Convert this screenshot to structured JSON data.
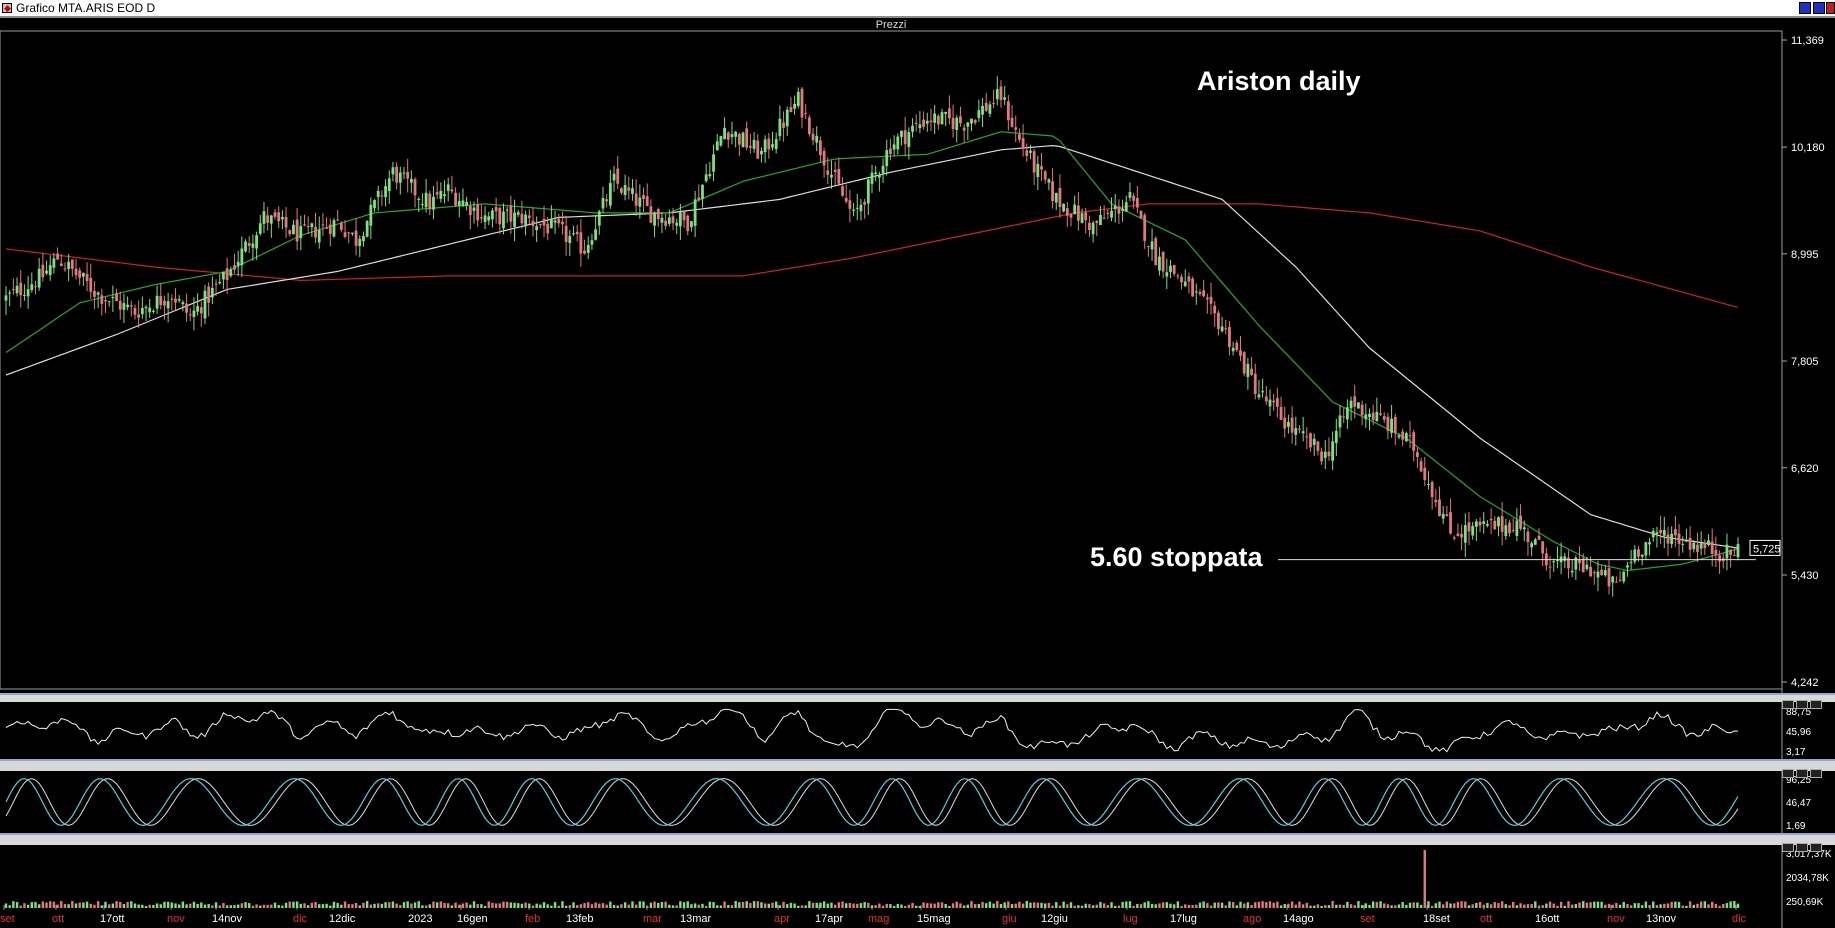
{
  "window": {
    "title": "Grafico MTA.ARIS EOD D",
    "panel_label": "Prezzi",
    "colors": {
      "background": "#000000",
      "bull": "#7ee07e",
      "bear": "#e07a7e",
      "ma_short": "#22aa22",
      "ma_mid": "#dddddd",
      "ma_long": "#cc2222",
      "osc_cyan": "#4fd0e0"
    }
  },
  "chart_data": {
    "type": "candlestick",
    "title": "Ariston daily",
    "annotation": {
      "text": "5.60 stoppata",
      "level": 5.6
    },
    "last_price": "5,725",
    "y_ticks": [
      "11,369",
      "10,180",
      "8,995",
      "7,805",
      "6,620",
      "5,430",
      "4,242"
    ],
    "y_tick_values": [
      11.369,
      10.18,
      8.995,
      7.805,
      6.62,
      5.43,
      4.242
    ],
    "ylim": [
      4.242,
      11.369
    ],
    "x_ticks": [
      {
        "label": "set",
        "red": true
      },
      {
        "label": "ott",
        "red": true
      },
      {
        "label": "17ott",
        "red": false
      },
      {
        "label": "nov",
        "red": true
      },
      {
        "label": "14nov",
        "red": false
      },
      {
        "label": "dic",
        "red": true
      },
      {
        "label": "12dic",
        "red": false
      },
      {
        "label": "2023",
        "red": false
      },
      {
        "label": "16gen",
        "red": false
      },
      {
        "label": "feb",
        "red": true
      },
      {
        "label": "13feb",
        "red": false
      },
      {
        "label": "mar",
        "red": true
      },
      {
        "label": "13mar",
        "red": false
      },
      {
        "label": "apr",
        "red": true
      },
      {
        "label": "17apr",
        "red": false
      },
      {
        "label": "mag",
        "red": true
      },
      {
        "label": "15mag",
        "red": false
      },
      {
        "label": "giu",
        "red": true
      },
      {
        "label": "12giu",
        "red": false
      },
      {
        "label": "lug",
        "red": true
      },
      {
        "label": "17lug",
        "red": false
      },
      {
        "label": "ago",
        "red": true
      },
      {
        "label": "14ago",
        "red": false
      },
      {
        "label": "set",
        "red": true
      },
      {
        "label": "18set",
        "red": false
      },
      {
        "label": "ott",
        "red": true
      },
      {
        "label": "16ott",
        "red": false
      },
      {
        "label": "nov",
        "red": true
      },
      {
        "label": "13nov",
        "red": false
      },
      {
        "label": "dic",
        "red": true
      }
    ],
    "close_anchors": [
      [
        0,
        8.5
      ],
      [
        10,
        8.75
      ],
      [
        14,
        8.95
      ],
      [
        25,
        8.55
      ],
      [
        35,
        8.35
      ],
      [
        45,
        8.55
      ],
      [
        50,
        8.3
      ],
      [
        60,
        8.75
      ],
      [
        70,
        9.4
      ],
      [
        80,
        9.2
      ],
      [
        90,
        9.35
      ],
      [
        95,
        9.15
      ],
      [
        105,
        9.9
      ],
      [
        115,
        9.55
      ],
      [
        120,
        9.7
      ],
      [
        130,
        9.4
      ],
      [
        140,
        9.4
      ],
      [
        150,
        9.25
      ],
      [
        157,
        9.05
      ],
      [
        165,
        9.8
      ],
      [
        175,
        9.45
      ],
      [
        185,
        9.35
      ],
      [
        195,
        10.4
      ],
      [
        205,
        10.1
      ],
      [
        215,
        10.7
      ],
      [
        225,
        9.8
      ],
      [
        230,
        9.4
      ],
      [
        240,
        10.2
      ],
      [
        250,
        10.5
      ],
      [
        260,
        10.45
      ],
      [
        270,
        10.75
      ],
      [
        275,
        10.25
      ],
      [
        280,
        9.9
      ],
      [
        285,
        9.6
      ],
      [
        295,
        9.3
      ],
      [
        305,
        9.6
      ],
      [
        312,
        8.97
      ],
      [
        318,
        8.75
      ],
      [
        330,
        8.2
      ],
      [
        340,
        7.45
      ],
      [
        350,
        7.0
      ],
      [
        358,
        6.75
      ],
      [
        365,
        7.35
      ],
      [
        375,
        7.1
      ],
      [
        382,
        6.85
      ],
      [
        392,
        5.9
      ],
      [
        400,
        5.95
      ],
      [
        410,
        6.0
      ],
      [
        420,
        5.55
      ],
      [
        430,
        5.5
      ],
      [
        437,
        5.3
      ],
      [
        442,
        5.7
      ],
      [
        450,
        5.9
      ],
      [
        460,
        5.75
      ],
      [
        468,
        5.65
      ],
      [
        470,
        5.725
      ]
    ],
    "ma20_anchors": [
      [
        0,
        7.9
      ],
      [
        20,
        8.45
      ],
      [
        40,
        8.65
      ],
      [
        60,
        8.8
      ],
      [
        80,
        9.2
      ],
      [
        100,
        9.45
      ],
      [
        130,
        9.55
      ],
      [
        160,
        9.45
      ],
      [
        180,
        9.45
      ],
      [
        200,
        9.8
      ],
      [
        225,
        10.05
      ],
      [
        250,
        10.1
      ],
      [
        270,
        10.35
      ],
      [
        285,
        10.3
      ],
      [
        300,
        9.55
      ],
      [
        320,
        9.15
      ],
      [
        340,
        8.2
      ],
      [
        360,
        7.35
      ],
      [
        380,
        6.95
      ],
      [
        400,
        6.3
      ],
      [
        420,
        5.8
      ],
      [
        432,
        5.55
      ],
      [
        440,
        5.48
      ],
      [
        455,
        5.55
      ],
      [
        470,
        5.72
      ]
    ],
    "ma50_anchors": [
      [
        0,
        7.65
      ],
      [
        30,
        8.1
      ],
      [
        60,
        8.6
      ],
      [
        90,
        8.8
      ],
      [
        120,
        9.1
      ],
      [
        150,
        9.4
      ],
      [
        180,
        9.45
      ],
      [
        210,
        9.6
      ],
      [
        240,
        9.9
      ],
      [
        270,
        10.15
      ],
      [
        285,
        10.2
      ],
      [
        300,
        10.0
      ],
      [
        330,
        9.6
      ],
      [
        350,
        8.85
      ],
      [
        370,
        7.95
      ],
      [
        400,
        6.95
      ],
      [
        430,
        6.1
      ],
      [
        450,
        5.85
      ],
      [
        470,
        5.73
      ]
    ],
    "ma200_anchors": [
      [
        0,
        9.05
      ],
      [
        40,
        8.85
      ],
      [
        80,
        8.7
      ],
      [
        120,
        8.75
      ],
      [
        160,
        8.75
      ],
      [
        200,
        8.75
      ],
      [
        230,
        8.95
      ],
      [
        260,
        9.2
      ],
      [
        290,
        9.45
      ],
      [
        310,
        9.55
      ],
      [
        340,
        9.55
      ],
      [
        370,
        9.45
      ],
      [
        400,
        9.25
      ],
      [
        430,
        8.85
      ],
      [
        470,
        8.4
      ]
    ],
    "volume_spike": {
      "bar": 385,
      "label": "volume spike"
    },
    "rsi_panel": {
      "ticks": [
        "88,75",
        "45,96",
        "3,17"
      ]
    },
    "stoch_panel": {
      "ticks": [
        "96,25",
        "46,47",
        "1,69"
      ]
    },
    "volume_panel": {
      "ticks": [
        "3,017,37K",
        "2034,78K",
        "250,69K"
      ]
    }
  }
}
